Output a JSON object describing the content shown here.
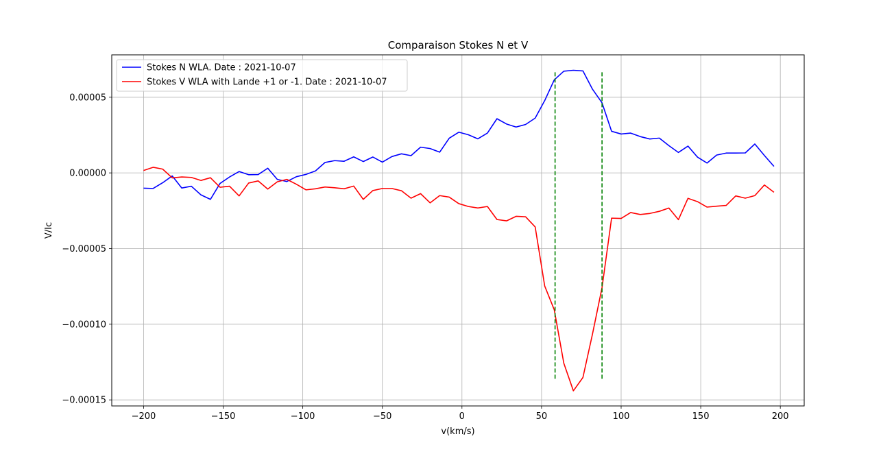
{
  "chart_data": {
    "type": "line",
    "title": "Comparaison Stokes N et V",
    "xlabel": "v(km/s)",
    "ylabel": "V/Ic",
    "xlim": [
      -220,
      215
    ],
    "ylim": [
      -0.000154,
      7.8e-05
    ],
    "xticks": [
      -200,
      -150,
      -100,
      -50,
      0,
      50,
      100,
      150,
      200
    ],
    "xtick_labels": [
      "−200",
      "−150",
      "−100",
      "−50",
      "0",
      "50",
      "100",
      "150",
      "200"
    ],
    "yticks": [
      5e-05,
      0.0,
      -5e-05,
      -0.0001,
      -0.00015
    ],
    "ytick_labels": [
      "0.00005",
      "0.00000",
      "−0.00005",
      "−0.00010",
      "−0.00015"
    ],
    "grid": true,
    "legend_position": "upper-left",
    "x": [
      -200,
      -194,
      -188,
      -182,
      -176,
      -170,
      -164,
      -158,
      -152,
      -146,
      -140,
      -134,
      -128,
      -122,
      -116,
      -110,
      -104,
      -98,
      -92,
      -86,
      -80,
      -74,
      -68,
      -62,
      -56,
      -50,
      -44,
      -38,
      -32,
      -26,
      -20,
      -14,
      -8,
      -2,
      4,
      10,
      16,
      22,
      28,
      34,
      40,
      46,
      52,
      58,
      64,
      70,
      76,
      82,
      88,
      94,
      100,
      106,
      112,
      118,
      124,
      130,
      136,
      142,
      148,
      154,
      160,
      166,
      172,
      178,
      184,
      190,
      196
    ],
    "series": [
      {
        "name": "Stokes N WLA. Date : 2021-10-07",
        "color": "#0000ff",
        "values": [
          -1.01e-05,
          -1.03e-05,
          -6.5e-06,
          -2e-06,
          -1e-05,
          -8.8e-06,
          -1.45e-05,
          -1.75e-05,
          -7e-06,
          -2.7e-06,
          9e-07,
          -1.2e-06,
          -1.1e-06,
          3.1e-06,
          -4.3e-06,
          -5.7e-06,
          -2.5e-06,
          -1e-06,
          1.3e-06,
          6.9e-06,
          8.1e-06,
          7.7e-06,
          1.06e-05,
          7.5e-06,
          1.05e-05,
          7.1e-06,
          1.08e-05,
          1.26e-05,
          1.14e-05,
          1.7e-05,
          1.61e-05,
          1.37e-05,
          2.29e-05,
          2.69e-05,
          2.52e-05,
          2.25e-05,
          2.63e-05,
          3.58e-05,
          3.23e-05,
          3.03e-05,
          3.2e-05,
          3.62e-05,
          4.78e-05,
          6.15e-05,
          6.72e-05,
          6.78e-05,
          6.74e-05,
          5.53e-05,
          4.63e-05,
          2.75e-05,
          2.57e-05,
          2.63e-05,
          2.4e-05,
          2.24e-05,
          2.3e-05,
          1.8e-05,
          1.35e-05,
          1.77e-05,
          1.04e-05,
          6.5e-06,
          1.18e-05,
          1.31e-05,
          1.31e-05,
          1.32e-05,
          1.91e-05,
          1.15e-05,
          4.3e-06
        ]
      },
      {
        "name": "Stokes V WLA with Lande +1 or -1. Date : 2021-10-07",
        "color": "#ff0000",
        "values": [
          1.6e-06,
          3.7e-06,
          2.5e-06,
          -3.3e-06,
          -2.7e-06,
          -3e-06,
          -5e-06,
          -3.2e-06,
          -9.5e-06,
          -8.8e-06,
          -1.52e-05,
          -6.7e-06,
          -5.3e-06,
          -1.07e-05,
          -5.9e-06,
          -4.3e-06,
          -7.5e-06,
          -1.12e-05,
          -1.05e-05,
          -9.3e-06,
          -9.8e-06,
          -1.05e-05,
          -8.7e-06,
          -1.75e-05,
          -1.17e-05,
          -1.03e-05,
          -1.03e-05,
          -1.18e-05,
          -1.67e-05,
          -1.37e-05,
          -1.98e-05,
          -1.5e-05,
          -1.6e-05,
          -2.03e-05,
          -2.22e-05,
          -2.32e-05,
          -2.22e-05,
          -3.08e-05,
          -3.17e-05,
          -2.87e-05,
          -2.9e-05,
          -3.57e-05,
          -7.48e-05,
          -9.05e-05,
          -0.0001258,
          -0.000144,
          -0.0001352,
          -0.0001065,
          -7.58e-05,
          -2.99e-05,
          -3.01e-05,
          -2.62e-05,
          -2.75e-05,
          -2.68e-05,
          -2.54e-05,
          -2.32e-05,
          -3.09e-05,
          -1.68e-05,
          -1.9e-05,
          -2.26e-05,
          -2.2e-05,
          -2.15e-05,
          -1.52e-05,
          -1.67e-05,
          -1.5e-05,
          -8e-06,
          -1.28e-05
        ]
      }
    ],
    "vlines": [
      {
        "x": 58.5,
        "ymin": -0.000137,
        "ymax": 6.65e-05,
        "color": "#008000",
        "style": "dashed"
      },
      {
        "x": 88.0,
        "ymin": -0.000137,
        "ymax": 6.65e-05,
        "color": "#008000",
        "style": "dashed"
      }
    ]
  }
}
